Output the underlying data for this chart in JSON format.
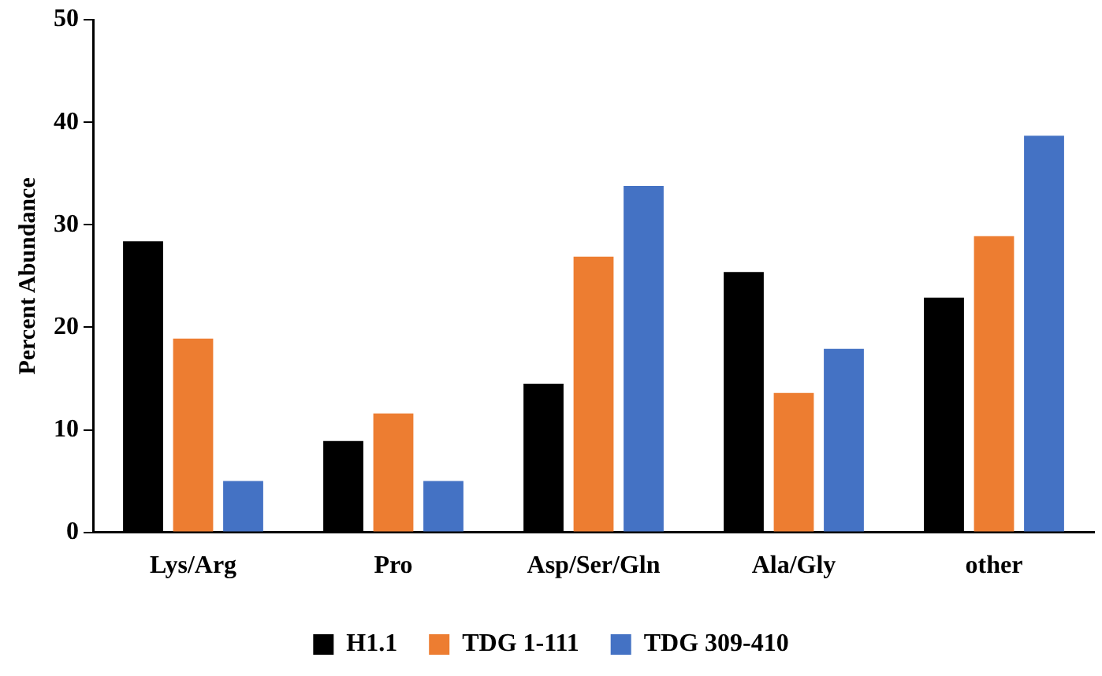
{
  "chart_data": {
    "type": "bar",
    "ylabel": "Percent Abundance",
    "categories": [
      "Lys/Arg",
      "Pro",
      "Asp/Ser/Gln",
      "Ala/Gly",
      "other"
    ],
    "series": [
      {
        "name": "H1.1",
        "color": "#000000",
        "values": [
          28.4,
          8.9,
          14.5,
          25.4,
          22.9
        ]
      },
      {
        "name": "TDG 1-111",
        "color": "#ed7d31",
        "values": [
          18.9,
          11.6,
          26.9,
          13.6,
          28.9
        ]
      },
      {
        "name": "TDG 309-410",
        "color": "#4472c4",
        "values": [
          5,
          5,
          33.8,
          17.9,
          38.7
        ]
      }
    ],
    "ylim": [
      0,
      50
    ],
    "yticks": [
      0,
      10,
      20,
      30,
      40,
      50
    ],
    "grid": false,
    "legend": "bottom"
  }
}
